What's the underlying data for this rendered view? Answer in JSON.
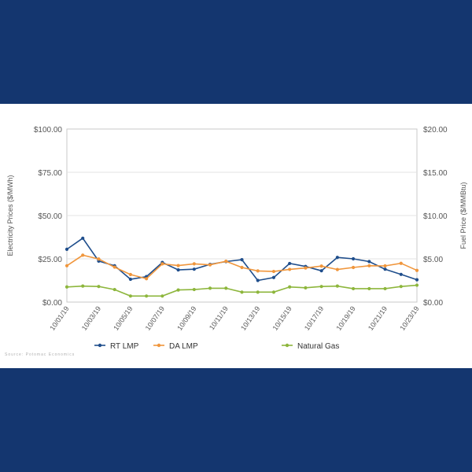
{
  "chart_data": {
    "type": "line",
    "categories": [
      "10/01/19",
      "10/02/19",
      "10/03/19",
      "10/04/19",
      "10/05/19",
      "10/06/19",
      "10/07/19",
      "10/08/19",
      "10/09/19",
      "10/10/19",
      "10/11/19",
      "10/12/19",
      "10/13/19",
      "10/14/19",
      "10/15/19",
      "10/16/19",
      "10/17/19",
      "10/18/19",
      "10/19/19",
      "10/20/19",
      "10/21/19",
      "10/22/19",
      "10/23/19"
    ],
    "x_tick_labels": [
      "10/01/19",
      "10/03/19",
      "10/05/19",
      "10/07/19",
      "10/09/19",
      "10/11/19",
      "10/13/19",
      "10/15/19",
      "10/17/19",
      "10/19/19",
      "10/21/19",
      "10/23/19"
    ],
    "ylabel_left": "Electricity Prices ($/MWh)",
    "ylabel_right": "Fuel Price ($/MMBtu)",
    "ylim_left": [
      0,
      100
    ],
    "ylim_right": [
      0,
      20
    ],
    "y_ticks_left": [
      "$0.00",
      "$25.00",
      "$50.00",
      "$75.00",
      "$100.00"
    ],
    "y_ticks_right": [
      "$0.00",
      "$5.00",
      "$10.00",
      "$15.00",
      "$20.00"
    ],
    "grid": true,
    "legend_position": "bottom",
    "series": [
      {
        "name": "RT LMP",
        "axis": "left",
        "color": "#1f4e8c",
        "values": [
          30.5,
          36.9,
          23.7,
          21.0,
          13.2,
          14.7,
          22.9,
          18.6,
          19.0,
          21.8,
          23.4,
          24.5,
          12.5,
          14.2,
          22.3,
          20.6,
          18.1,
          25.8,
          25.0,
          23.4,
          19.0,
          16.0,
          12.9
        ]
      },
      {
        "name": "DA LMP",
        "axis": "left",
        "color": "#f0963c",
        "values": [
          21.0,
          27.1,
          24.9,
          20.2,
          15.9,
          13.5,
          22.1,
          21.1,
          22.1,
          21.5,
          23.6,
          20.0,
          18.0,
          17.7,
          18.9,
          19.7,
          20.8,
          18.8,
          20.0,
          21.0,
          20.9,
          22.4,
          18.3
        ]
      },
      {
        "name": "Natural Gas",
        "axis": "right",
        "color": "#8db63c",
        "values": [
          1.75,
          1.85,
          1.8,
          1.45,
          0.7,
          0.7,
          0.7,
          1.4,
          1.45,
          1.6,
          1.6,
          1.15,
          1.15,
          1.15,
          1.75,
          1.65,
          1.8,
          1.85,
          1.55,
          1.55,
          1.55,
          1.8,
          1.95
        ]
      }
    ]
  },
  "footnote": "Source: Potomac Economics"
}
